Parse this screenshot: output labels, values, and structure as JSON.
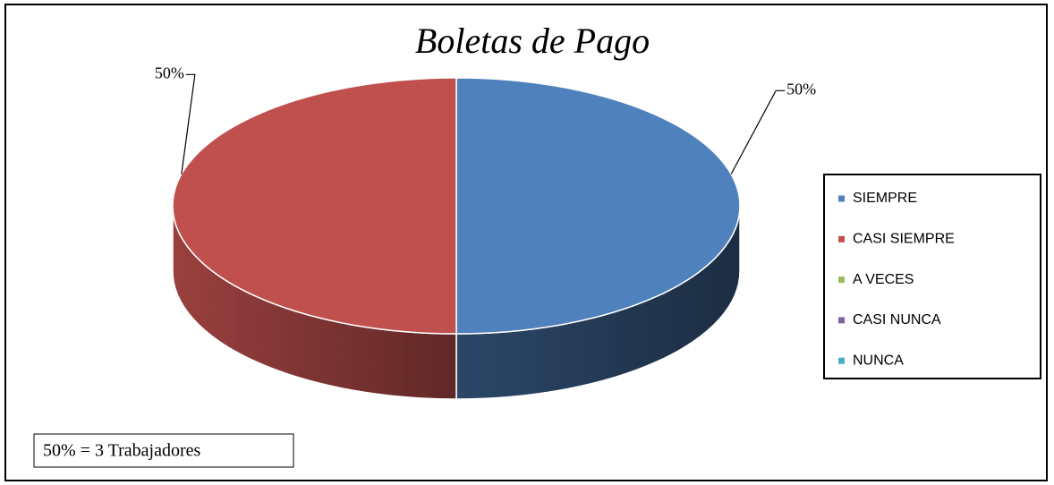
{
  "chart_data": {
    "type": "pie",
    "title": "Boletas de Pago",
    "categories": [
      "SIEMPRE",
      "CASI SIEMPRE",
      "A VECES",
      "CASI NUNCA",
      "NUNCA"
    ],
    "values": [
      50,
      50,
      0,
      0,
      0
    ],
    "value_labels": [
      "50%",
      "50%",
      null,
      null,
      null
    ],
    "colors": [
      "#4f81bd",
      "#c0504d",
      "#9bbb59",
      "#8064a2",
      "#4bacc6"
    ],
    "legend": "right",
    "annotation": "50% = 3 Trabajadores"
  }
}
